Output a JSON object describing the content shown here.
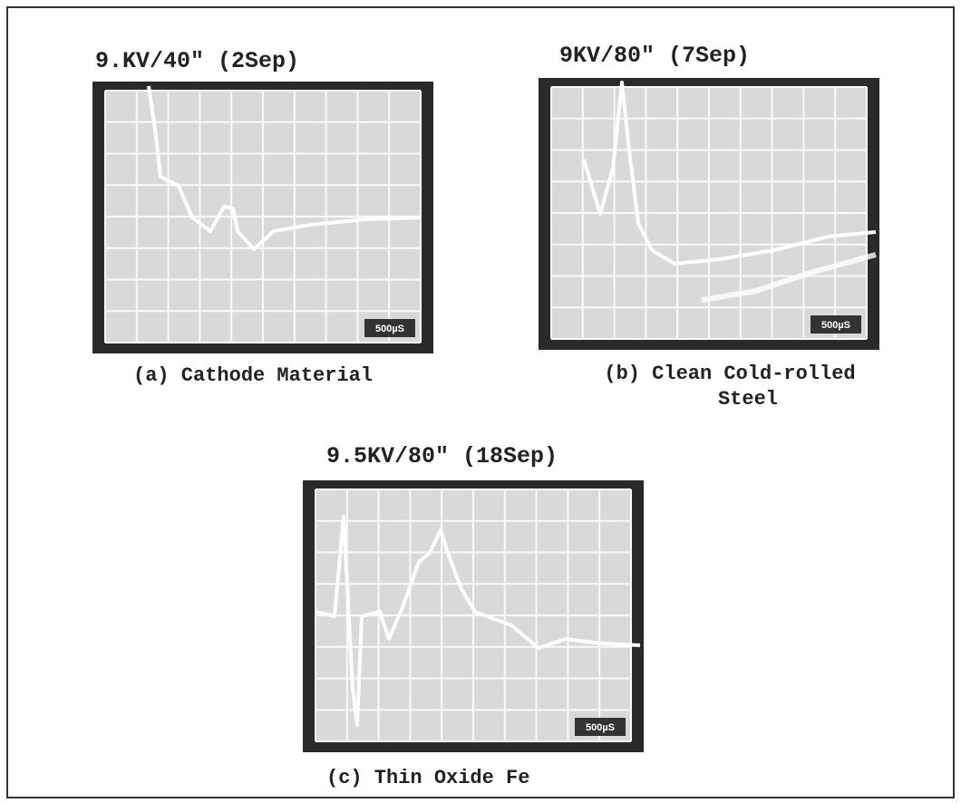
{
  "panels": [
    {
      "title": "9.KV/40\" (2Sep)",
      "caption": [
        "(a) Cathode Material"
      ],
      "scale": "500µS"
    },
    {
      "title": "9KV/80\" (7Sep)",
      "caption": [
        "(b) Clean Cold-rolled",
        "Steel"
      ],
      "scale": "500µS"
    },
    {
      "title": "9.5KV/80\" (18Sep)",
      "caption": [
        "(c) Thin Oxide Fe"
      ],
      "scale": "500µS"
    }
  ]
}
